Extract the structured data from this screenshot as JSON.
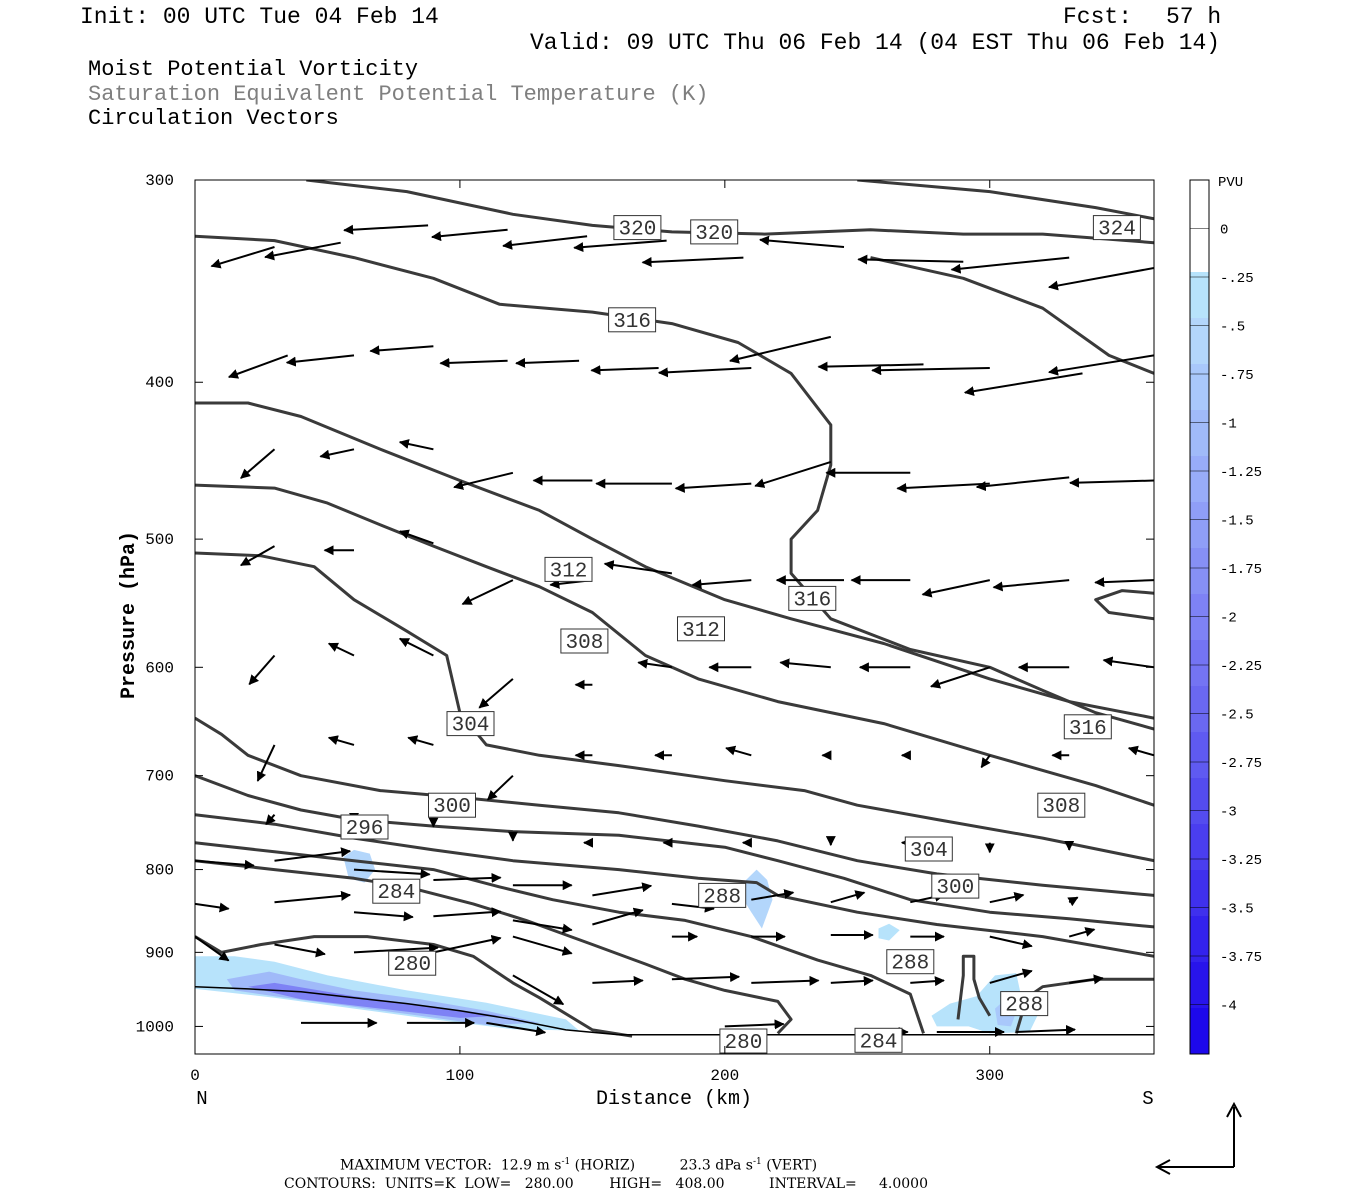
{
  "header": {
    "init": "Init: 00 UTC Tue 04 Feb 14",
    "fcst_label": "Fcst:",
    "fcst_value": "57 h",
    "valid": "Valid: 09 UTC Thu 06 Feb 14 (04 EST Thu 06 Feb 14)",
    "field1": "Moist Potential Vorticity",
    "field2": "Saturation Equivalent Potential Temperature (K)",
    "field3": "Circulation Vectors"
  },
  "colors": {
    "contour": "#3a3a3a",
    "field2_text": "#7f7f7f",
    "pv_ramp": [
      "#ffffff",
      "#ffffff",
      "#b7e3fb",
      "#b3d6fb",
      "#a9c8fb",
      "#a0baf9",
      "#98acf9",
      "#8f9ef7",
      "#8690f5",
      "#7e82f5",
      "#7474f3",
      "#6a68f1",
      "#5f5af1",
      "#544cef",
      "#4a3eef",
      "#3f30ed",
      "#3322ed",
      "#2814eb",
      "#1d08eb"
    ]
  },
  "chart_data": {
    "type": "cross-section",
    "xlabel": "Distance (km)",
    "ylabel": "Pressure (hPa)",
    "xlim": [
      0,
      362
    ],
    "ylim": [
      1040,
      300
    ],
    "y_scale": "log",
    "x_ticks": [
      "0",
      "100",
      "200",
      "300"
    ],
    "y_ticks": [
      "300",
      "400",
      "500",
      "600",
      "700",
      "800",
      "900",
      "1000"
    ],
    "end_left": "N",
    "end_right": "S",
    "colorbar": {
      "title": "PVU",
      "labels": [
        "0",
        "-.25",
        "-.5",
        "-.75",
        "-1",
        "-1.25",
        "-1.5",
        "-1.75",
        "-2",
        "-2.25",
        "-2.5",
        "-2.75",
        "-3",
        "-3.25",
        "-3.5",
        "-3.75",
        "-4"
      ]
    },
    "contour_labels": [
      {
        "text": "320",
        "x": 167,
        "p": 321
      },
      {
        "text": "320",
        "x": 196,
        "p": 323
      },
      {
        "text": "324",
        "x": 348,
        "p": 321
      },
      {
        "text": "316",
        "x": 165,
        "p": 366
      },
      {
        "text": "312",
        "x": 141,
        "p": 522
      },
      {
        "text": "316",
        "x": 233,
        "p": 544
      },
      {
        "text": "308",
        "x": 147,
        "p": 578
      },
      {
        "text": "312",
        "x": 191,
        "p": 568
      },
      {
        "text": "304",
        "x": 104,
        "p": 650
      },
      {
        "text": "316",
        "x": 337,
        "p": 653
      },
      {
        "text": "300",
        "x": 97,
        "p": 730
      },
      {
        "text": "308",
        "x": 327,
        "p": 730
      },
      {
        "text": "296",
        "x": 64,
        "p": 753
      },
      {
        "text": "304",
        "x": 277,
        "p": 777
      },
      {
        "text": "284",
        "x": 76,
        "p": 825
      },
      {
        "text": "300",
        "x": 287,
        "p": 819
      },
      {
        "text": "288",
        "x": 199,
        "p": 830
      },
      {
        "text": "280",
        "x": 82,
        "p": 914
      },
      {
        "text": "288",
        "x": 270,
        "p": 912
      },
      {
        "text": "288",
        "x": 313,
        "p": 968
      },
      {
        "text": "280",
        "x": 207,
        "p": 1021
      },
      {
        "text": "284",
        "x": 258,
        "p": 1020
      }
    ],
    "vectors_note": "Circulation vectors (u, omega)",
    "max_vector": {
      "label": "MAXIMUM VECTOR:",
      "horiz_value": "12.9 m s",
      "horiz_exp": "-1",
      "horiz_tag": "(HORIZ)",
      "vert_value": "23.3 dPa s",
      "vert_exp": "-1",
      "vert_tag": "(VERT)"
    },
    "contours_info": {
      "label": "CONTOURS:",
      "units": "UNITS=K",
      "low_label": "LOW=",
      "low": "280.00",
      "high_label": "HIGH=",
      "high": "408.00",
      "interval_label": "INTERVAL=",
      "interval": "4.0000"
    }
  }
}
